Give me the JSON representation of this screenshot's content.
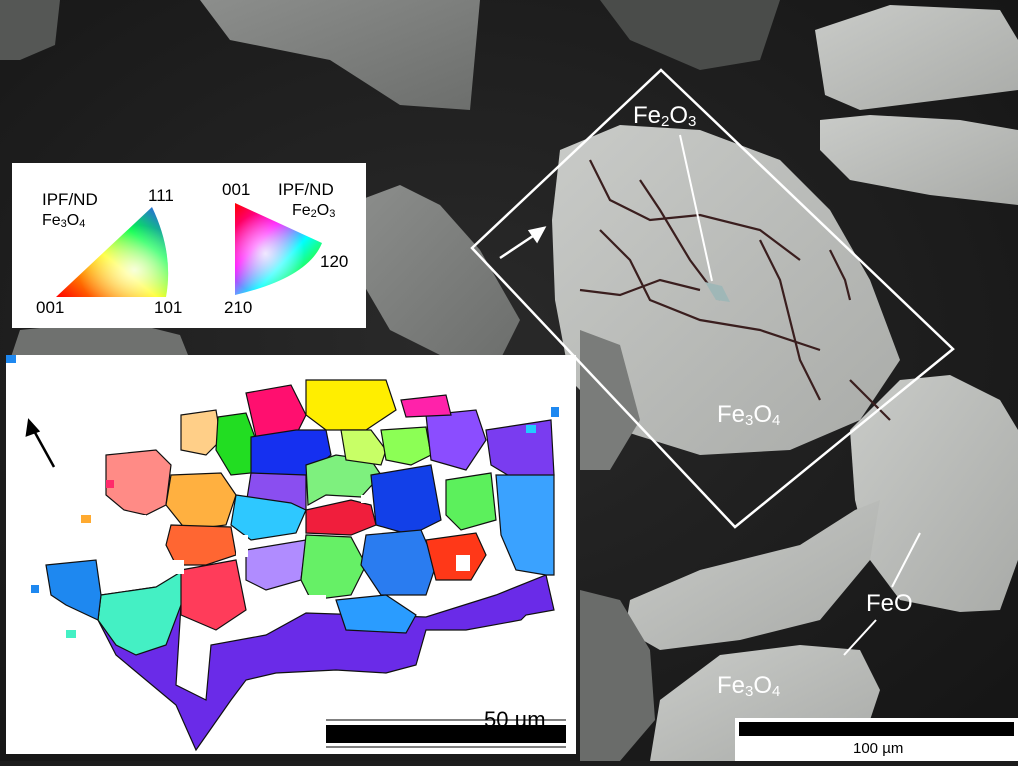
{
  "labels": {
    "fe2o3_main": {
      "base": "Fe",
      "s1": "2",
      "mid": "O",
      "s2": "3"
    },
    "fe3o4_main": {
      "base": "Fe",
      "s1": "3",
      "mid": "O",
      "s2": "4"
    },
    "fe3o4_lower": {
      "base": "Fe",
      "s1": "3",
      "mid": "O",
      "s2": "4"
    },
    "feo": "FeO"
  },
  "legend": {
    "magnetite": {
      "title": "IPF/ND",
      "phase": {
        "base": "Fe",
        "s1": "3",
        "mid": "O",
        "s2": "4"
      },
      "corner_top": "111",
      "corner_left": "001",
      "corner_right": "101"
    },
    "hematite": {
      "title": "IPF/ND",
      "phase": {
        "base": "Fe",
        "s1": "2",
        "mid": "O",
        "s2": "3"
      },
      "corner_top": "001",
      "corner_right": "120",
      "corner_bottom": "210"
    }
  },
  "scale_bars": {
    "inset": "50 µm",
    "main": "100 µm"
  },
  "colors": {
    "background": "#1c1c1c",
    "particle": "#b9bbb9",
    "annotation": "#ffffff"
  }
}
